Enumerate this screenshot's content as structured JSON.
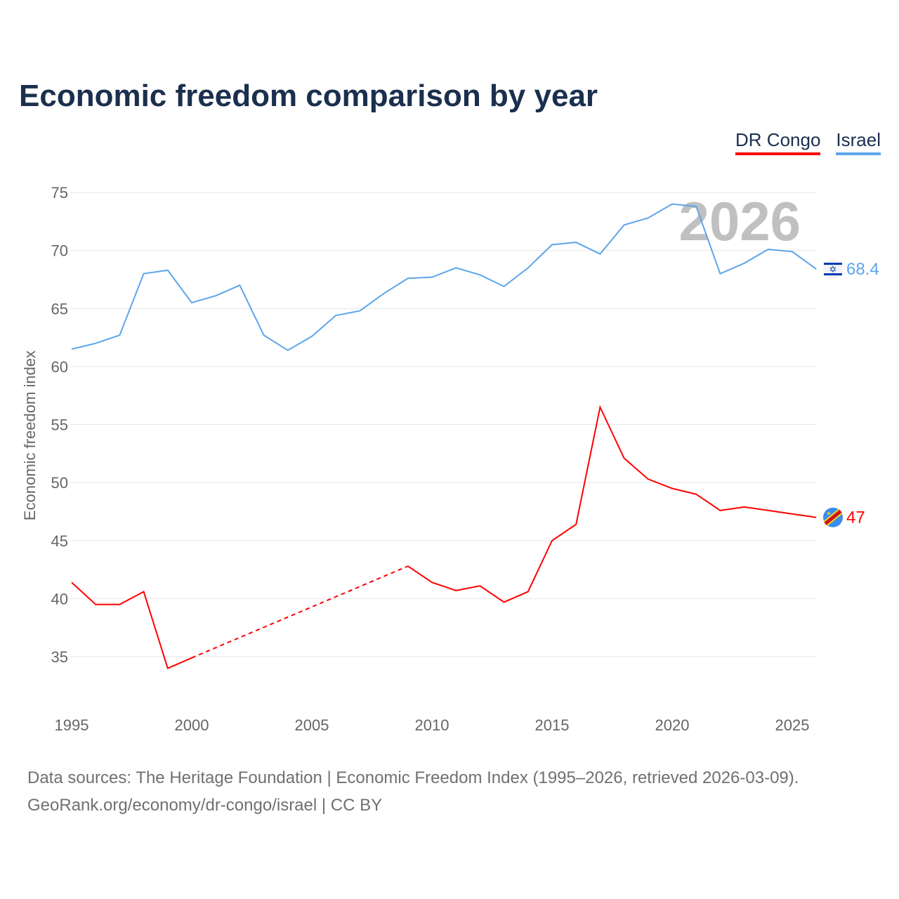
{
  "title": "Economic freedom comparison by year",
  "legend": [
    {
      "label": "DR Congo",
      "color": "#ff0000"
    },
    {
      "label": "Israel",
      "color": "#5da5eb"
    }
  ],
  "footer": {
    "line1": "Data sources: The Heritage Foundation | Economic Freedom Index (1995–2026, retrieved 2026-03-09).",
    "line2": "GeoRank.org/economy/dr-congo/israel | CC BY"
  },
  "chart_data": {
    "type": "line",
    "title": "Economic freedom comparison by year",
    "xlabel": "",
    "ylabel": "Economic freedom index",
    "watermark": "2026",
    "xlim": [
      1995,
      2026
    ],
    "ylim": [
      31,
      76
    ],
    "yticks": [
      35,
      40,
      45,
      50,
      55,
      60,
      65,
      70,
      75
    ],
    "xticks": [
      1995,
      2000,
      2005,
      2010,
      2015,
      2020,
      2025
    ],
    "grid": true,
    "legend_position": "top-right",
    "x": [
      1995,
      1996,
      1997,
      1998,
      1999,
      2000,
      2001,
      2002,
      2003,
      2004,
      2005,
      2006,
      2007,
      2008,
      2009,
      2010,
      2011,
      2012,
      2013,
      2014,
      2015,
      2016,
      2017,
      2018,
      2019,
      2020,
      2021,
      2022,
      2023,
      2024,
      2025,
      2026
    ],
    "series": [
      {
        "name": "DR Congo",
        "color": "#ff0000",
        "end_label": "47",
        "flag_icon": "dr-congo-flag-icon",
        "values": [
          41.4,
          39.5,
          39.5,
          40.6,
          34.0,
          34.9,
          null,
          null,
          null,
          null,
          null,
          null,
          null,
          null,
          42.8,
          41.4,
          40.7,
          41.1,
          39.7,
          40.6,
          45.0,
          46.4,
          56.5,
          52.1,
          50.3,
          49.5,
          49.0,
          47.6,
          47.9,
          47.6,
          47.3,
          47.0
        ]
      },
      {
        "name": "Israel",
        "color": "#5da5eb",
        "end_label": "68.4",
        "flag_icon": "israel-flag-icon",
        "values": [
          61.5,
          62.0,
          62.7,
          68.0,
          68.3,
          65.5,
          66.1,
          67.0,
          62.7,
          61.4,
          62.6,
          64.4,
          64.8,
          66.3,
          67.6,
          67.7,
          68.5,
          67.9,
          66.9,
          68.5,
          70.5,
          70.7,
          69.7,
          72.2,
          72.8,
          74.0,
          73.8,
          68.0,
          68.9,
          70.1,
          69.9,
          68.4
        ]
      }
    ]
  }
}
